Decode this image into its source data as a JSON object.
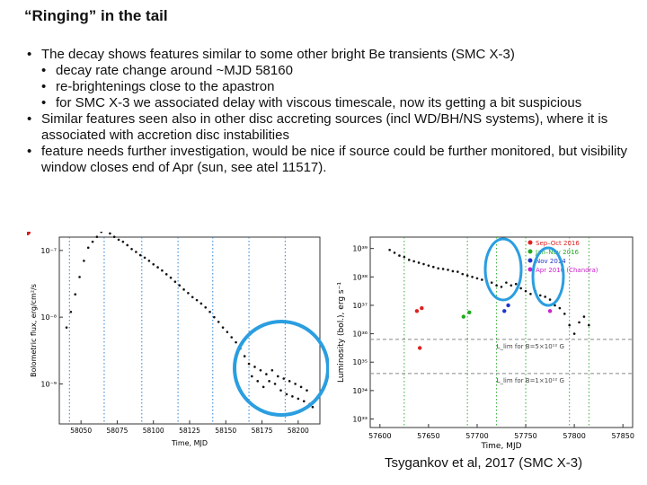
{
  "slide": {
    "title": "“Ringing” in the tail",
    "bullets": [
      {
        "level": 1,
        "text": "The decay shows features similar to some other bright Be transients (SMC X-3)"
      },
      {
        "level": 2,
        "text": "decay rate change around ~MJD 58160"
      },
      {
        "level": 2,
        "text": "re-brightenings close to the apastron"
      },
      {
        "level": 2,
        "text": "for SMC X-3 we associated delay with viscous timescale, now its getting a bit suspicious"
      },
      {
        "level": 1,
        "text": "Similar features seen also in other disc accreting sources (incl WD/BH/NS systems), where it is associated with accretion disc instabilities"
      },
      {
        "level": 1,
        "text": "feature needs further investigation, would be nice if source could be further monitored, but visibility window closes end of Apr (sun, see atel 11517)."
      }
    ],
    "caption": "Tsygankov et al, 2017 (SMC X-3)"
  },
  "chart_data": [
    {
      "type": "scatter",
      "xlabel": "Time, MJD",
      "ylabel": "Bolometric flux, erg/cm²/s",
      "x_ticks": [
        58050,
        58075,
        58100,
        58125,
        58150,
        58175,
        58200
      ],
      "y_ticks": [
        "10⁻⁷",
        "10⁻⁸",
        "10⁻⁹"
      ],
      "xlim": [
        58035,
        58215
      ],
      "ylim_log10": [
        -9.6,
        -6.8
      ],
      "dotted_lines_mjd": [
        58042,
        58066,
        58092,
        58117,
        58141,
        58166,
        58191
      ],
      "highlight_points": [
        {
          "x": 58042,
          "y": 1.3e-08
        },
        {
          "x": 58058,
          "y": 1.4e-07
        },
        {
          "x": 58067,
          "y": 2e-07
        },
        {
          "x": 58092,
          "y": 8e-08
        },
        {
          "x": 58185,
          "y": 1.2e-09
        }
      ],
      "series_points": [
        [
          58040,
          7e-09
        ],
        [
          58043,
          1.2e-08
        ],
        [
          58046,
          2.2e-08
        ],
        [
          58049,
          4e-08
        ],
        [
          58052,
          7e-08
        ],
        [
          58055,
          1.1e-07
        ],
        [
          58058,
          1.35e-07
        ],
        [
          58061,
          1.6e-07
        ],
        [
          58064,
          1.9e-07
        ],
        [
          58067,
          2.1e-07
        ],
        [
          58070,
          1.8e-07
        ],
        [
          58073,
          1.6e-07
        ],
        [
          58076,
          1.45e-07
        ],
        [
          58079,
          1.35e-07
        ],
        [
          58082,
          1.2e-07
        ],
        [
          58085,
          1.05e-07
        ],
        [
          58088,
          9.5e-08
        ],
        [
          58091,
          8.5e-08
        ],
        [
          58094,
          7.8e-08
        ],
        [
          58097,
          7e-08
        ],
        [
          58100,
          6.2e-08
        ],
        [
          58103,
          5.6e-08
        ],
        [
          58106,
          5e-08
        ],
        [
          58109,
          4.4e-08
        ],
        [
          58112,
          3.9e-08
        ],
        [
          58115,
          3.4e-08
        ],
        [
          58118,
          3e-08
        ],
        [
          58121,
          2.6e-08
        ],
        [
          58124,
          2.3e-08
        ],
        [
          58127,
          2e-08
        ],
        [
          58130,
          1.8e-08
        ],
        [
          58133,
          1.6e-08
        ],
        [
          58136,
          1.4e-08
        ],
        [
          58139,
          1.2e-08
        ],
        [
          58142,
          1e-08
        ],
        [
          58145,
          8.5e-09
        ],
        [
          58148,
          7e-09
        ],
        [
          58151,
          6e-09
        ],
        [
          58154,
          5e-09
        ],
        [
          58157,
          4.2e-09
        ],
        [
          58160,
          3.4e-09
        ],
        [
          58163,
          2.6e-09
        ],
        [
          58166,
          2e-09
        ],
        [
          58168,
          1.3e-09
        ],
        [
          58170,
          1.8e-09
        ],
        [
          58172,
          1.1e-09
        ],
        [
          58174,
          1.6e-09
        ],
        [
          58176,
          9e-10
        ],
        [
          58178,
          1.4e-09
        ],
        [
          58180,
          1.1e-09
        ],
        [
          58182,
          1.6e-09
        ],
        [
          58184,
          1e-09
        ],
        [
          58186,
          1.3e-09
        ],
        [
          58188,
          8e-10
        ],
        [
          58190,
          1.2e-09
        ],
        [
          58192,
          7e-10
        ],
        [
          58194,
          1.1e-09
        ],
        [
          58196,
          6.5e-10
        ],
        [
          58198,
          1e-09
        ],
        [
          58200,
          6e-10
        ],
        [
          58202,
          9e-10
        ],
        [
          58204,
          5.5e-10
        ],
        [
          58206,
          8e-10
        ],
        [
          58208,
          5e-10
        ],
        [
          58210,
          4.5e-10
        ]
      ]
    },
    {
      "type": "scatter",
      "xlabel": "Time, MJD",
      "ylabel": "Luminosity (bol.), erg s⁻¹",
      "x_ticks": [
        57600,
        57650,
        57700,
        57750,
        57800,
        57850
      ],
      "y_ticks": [
        "10³⁹",
        "10³⁸",
        "10³⁷",
        "10³⁶",
        "10³⁵",
        "10³⁴",
        "10³³"
      ],
      "xlim": [
        57590,
        57860
      ],
      "ylim_log10": [
        32.7,
        39.4
      ],
      "legend": [
        "Sep–Oct 2016",
        "Jan–Nov 2016",
        "Nov 2014",
        "Apr 2016 (Chandra)"
      ],
      "legend_colors": [
        "#e02020",
        "#22aa22",
        "#2233cc",
        "#cc22cc"
      ],
      "hlines": [
        {
          "y_log10": 35.8,
          "label": "L_lim for B=5×10¹² G"
        },
        {
          "y_log10": 34.6,
          "label": "L_lim for B=1×10¹² G"
        }
      ],
      "main_series": [
        [
          57610,
          38.95
        ],
        [
          57615,
          38.85
        ],
        [
          57620,
          38.75
        ],
        [
          57625,
          38.7
        ],
        [
          57630,
          38.6
        ],
        [
          57635,
          38.55
        ],
        [
          57640,
          38.5
        ],
        [
          57645,
          38.45
        ],
        [
          57650,
          38.4
        ],
        [
          57655,
          38.35
        ],
        [
          57660,
          38.3
        ],
        [
          57665,
          38.28
        ],
        [
          57670,
          38.25
        ],
        [
          57675,
          38.2
        ],
        [
          57680,
          38.18
        ],
        [
          57685,
          38.1
        ],
        [
          57690,
          38.05
        ],
        [
          57695,
          38.0
        ],
        [
          57700,
          37.95
        ],
        [
          57705,
          37.9
        ],
        [
          57710,
          37.85
        ],
        [
          57715,
          37.8
        ],
        [
          57720,
          37.7
        ],
        [
          57725,
          37.65
        ],
        [
          57730,
          37.8
        ],
        [
          57735,
          37.7
        ],
        [
          57740,
          37.75
        ],
        [
          57745,
          37.6
        ],
        [
          57750,
          37.5
        ],
        [
          57755,
          37.4
        ],
        [
          57760,
          37.5
        ],
        [
          57765,
          37.35
        ],
        [
          57770,
          37.3
        ],
        [
          57775,
          37.2
        ],
        [
          57780,
          37.0
        ],
        [
          57785,
          36.9
        ],
        [
          57790,
          36.7
        ],
        [
          57795,
          36.3
        ],
        [
          57800,
          36.0
        ],
        [
          57805,
          36.4
        ],
        [
          57810,
          36.6
        ],
        [
          57815,
          36.3
        ]
      ],
      "red_points": [
        [
          57638,
          36.8
        ],
        [
          57643,
          36.9
        ],
        [
          57641,
          35.5
        ]
      ],
      "green_points": [
        [
          57686,
          36.6
        ],
        [
          57692,
          36.75
        ]
      ],
      "blue_points": [
        [
          57728,
          36.8
        ],
        [
          57732,
          37.0
        ]
      ],
      "magenta_points": [
        [
          57775,
          36.8
        ]
      ]
    }
  ]
}
